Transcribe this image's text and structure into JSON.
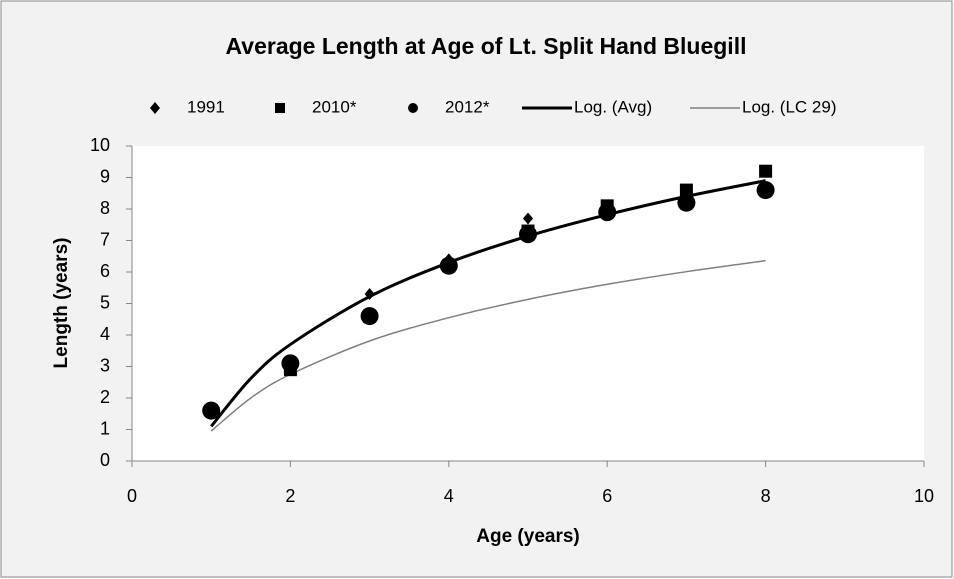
{
  "chart_data": {
    "type": "scatter",
    "title": "Average Length at Age of Lt. Split Hand Bluegill",
    "x_label": "Age (years)",
    "y_label": "Length (years)",
    "xlim": [
      0,
      10
    ],
    "xticks": [
      0,
      2,
      4,
      6,
      8,
      10
    ],
    "ylim": [
      0,
      10
    ],
    "yticks": [
      0,
      1,
      2,
      3,
      4,
      5,
      6,
      7,
      8,
      9,
      10
    ],
    "grid": false,
    "legend": "top",
    "series": [
      {
        "name": "1991",
        "marker": "diamond",
        "color": "#000000",
        "x": [
          1,
          2,
          3,
          4,
          5,
          6,
          7,
          8
        ],
        "values": [
          1.6,
          3.0,
          5.3,
          6.4,
          7.7,
          8.0,
          8.4,
          8.6
        ]
      },
      {
        "name": "2010*",
        "marker": "square",
        "color": "#000000",
        "x": [
          1,
          2,
          3,
          4,
          5,
          6,
          7,
          8
        ],
        "values": [
          1.6,
          2.9,
          4.6,
          6.2,
          7.3,
          8.1,
          8.6,
          9.2
        ]
      },
      {
        "name": "2012*",
        "marker": "circle",
        "color": "#000000",
        "x": [
          1,
          2,
          3,
          4,
          5,
          6,
          7,
          8
        ],
        "values": [
          1.6,
          3.1,
          4.6,
          6.2,
          7.2,
          7.9,
          8.2,
          8.6
        ]
      },
      {
        "name": "Log. (Avg)",
        "marker": "line",
        "color": "#000000",
        "line_width": 3,
        "x": [
          1,
          1.5,
          2,
          3,
          4,
          5,
          6,
          7,
          8
        ],
        "values": [
          1.1,
          2.62,
          3.7,
          5.22,
          6.3,
          7.14,
          7.82,
          8.4,
          8.9
        ]
      },
      {
        "name": "Log. (LC 29)",
        "marker": "line",
        "color": "#808080",
        "line_width": 1.5,
        "x": [
          1,
          1.5,
          2,
          3,
          4,
          5,
          6,
          7,
          8
        ],
        "values": [
          0.95,
          2.0,
          2.75,
          3.81,
          4.55,
          5.13,
          5.61,
          6.01,
          6.36
        ]
      }
    ]
  }
}
